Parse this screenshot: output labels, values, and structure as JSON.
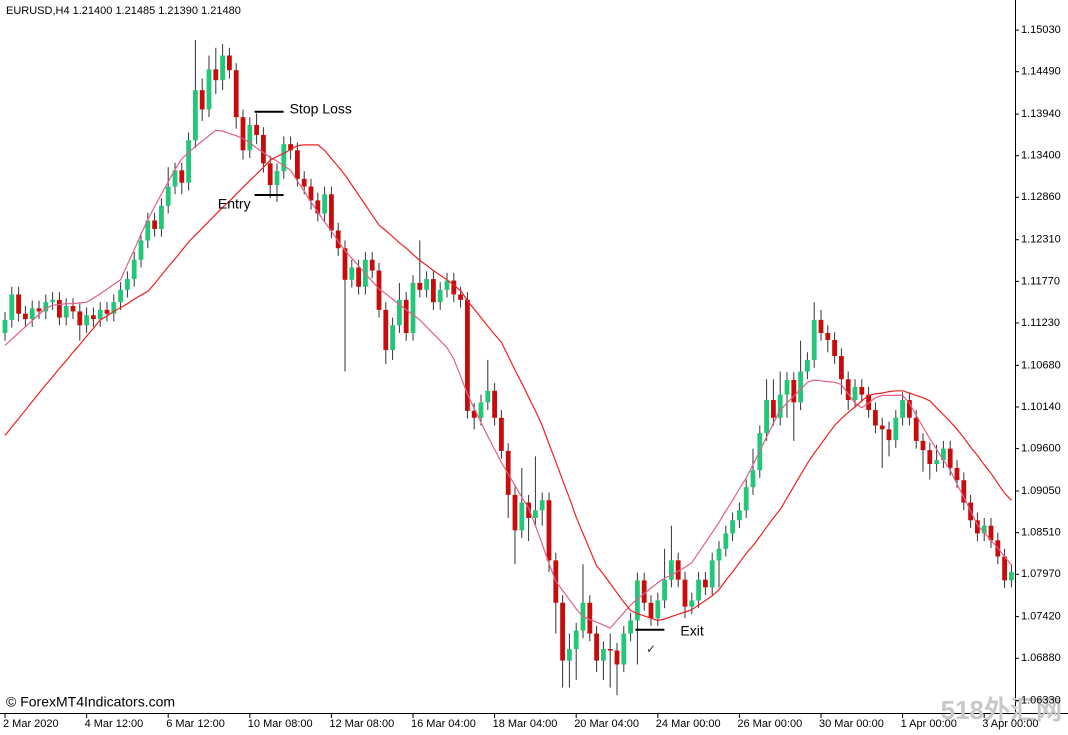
{
  "chart_data": {
    "type": "candlestick",
    "header": "EURUSD,H4  1.21400 1.21485 1.21390 1.21480",
    "watermark": "© ForexMT4Indicators.com",
    "corner_watermark": "518外汇网",
    "up_color": "#22c77a",
    "down_color": "#c80c0c",
    "wick_color": "#333333",
    "categories": [
      "2 Mar 2020",
      null,
      null,
      null,
      null,
      null,
      null,
      null,
      null,
      null,
      null,
      null,
      "4 Mar 12:00",
      null,
      null,
      null,
      null,
      null,
      null,
      null,
      null,
      null,
      null,
      null,
      "6 Mar 12:00",
      null,
      null,
      null,
      null,
      null,
      null,
      null,
      null,
      null,
      null,
      null,
      "10 Mar 08:00",
      null,
      null,
      null,
      null,
      null,
      null,
      null,
      null,
      null,
      null,
      null,
      "12 Mar 08:00",
      null,
      null,
      null,
      null,
      null,
      null,
      null,
      null,
      null,
      null,
      null,
      "16 Mar 04:00",
      null,
      null,
      null,
      null,
      null,
      null,
      null,
      null,
      null,
      null,
      null,
      "18 Mar 04:00",
      null,
      null,
      null,
      null,
      null,
      null,
      null,
      null,
      null,
      null,
      null,
      "20 Mar 04:00",
      null,
      null,
      null,
      null,
      null,
      null,
      null,
      null,
      null,
      null,
      null,
      "24 Mar 00:00",
      null,
      null,
      null,
      null,
      null,
      null,
      null,
      null,
      null,
      null,
      null,
      "26 Mar 00:00",
      null,
      null,
      null,
      null,
      null,
      null,
      null,
      null,
      null,
      null,
      null,
      "30 Mar 00:00",
      null,
      null,
      null,
      null,
      null,
      null,
      null,
      null,
      null,
      null,
      null,
      "1 Apr 00:00",
      null,
      null,
      null,
      null,
      null,
      null,
      null,
      null,
      null,
      null,
      null,
      "3 Apr 00:00",
      null,
      null,
      null,
      null
    ],
    "open": [
      1.111,
      1.1127,
      1.116,
      1.1135,
      1.1128,
      1.1142,
      1.1138,
      1.115,
      1.1153,
      1.113,
      1.1145,
      1.1138,
      1.112,
      1.1133,
      1.1128,
      1.114,
      1.1135,
      1.115,
      1.1166,
      1.118,
      1.1205,
      1.123,
      1.1256,
      1.1245,
      1.1275,
      1.13,
      1.1321,
      1.1305,
      1.136,
      1.1425,
      1.14,
      1.1452,
      1.1438,
      1.147,
      1.1451,
      1.139,
      1.1347,
      1.138,
      1.1367,
      1.133,
      1.1302,
      1.132,
      1.1355,
      1.1347,
      1.131,
      1.13,
      1.1282,
      1.1265,
      1.129,
      1.1243,
      1.122,
      1.1179,
      1.1195,
      1.117,
      1.1205,
      1.1191,
      1.114,
      1.1088,
      1.112,
      1.1153,
      1.111,
      1.1175,
      1.1166,
      1.118,
      1.115,
      1.1166,
      1.1178,
      1.116,
      1.1153,
      1.1009,
      1.1,
      1.102,
      1.1035,
      1.1,
      1.0957,
      1.09,
      1.0854,
      1.089,
      1.087,
      1.088,
      1.0893,
      1.0815,
      1.076,
      1.0685,
      1.07,
      1.0724,
      1.076,
      1.072,
      1.0685,
      1.07,
      1.0698,
      1.068,
      1.072,
      1.0737,
      1.0789,
      1.076,
      1.074,
      1.0763,
      1.079,
      1.0815,
      1.079,
      1.0755,
      1.0763,
      1.079,
      1.078,
      1.0815,
      1.083,
      1.085,
      1.0867,
      1.088,
      1.091,
      1.0932,
      1.098,
      1.1023,
      1.1,
      1.103,
      1.1049,
      1.102,
      1.106,
      1.1075,
      1.1127,
      1.111,
      1.1101,
      1.108,
      1.105,
      1.1023,
      1.104,
      1.103,
      1.101,
      1.099,
      1.0985,
      1.0971,
      1.1,
      1.1023,
      1.1,
      1.097,
      1.0958,
      1.094,
      1.0945,
      1.096,
      1.0935,
      1.0919,
      1.089,
      1.0867,
      1.085,
      1.086,
      1.0841,
      1.082,
      1.0789
    ],
    "high": [
      1.1137,
      1.117,
      1.117,
      1.1145,
      1.1152,
      1.1152,
      1.116,
      1.1163,
      1.1163,
      1.1155,
      1.1155,
      1.1148,
      1.1143,
      1.1143,
      1.115,
      1.115,
      1.116,
      1.1176,
      1.119,
      1.1215,
      1.124,
      1.1266,
      1.1266,
      1.1285,
      1.1325,
      1.1331,
      1.1331,
      1.137,
      1.149,
      1.144,
      1.147,
      1.148,
      1.1485,
      1.148,
      1.146,
      1.14,
      1.139,
      1.1395,
      1.1377,
      1.134,
      1.133,
      1.1365,
      1.1365,
      1.1357,
      1.132,
      1.131,
      1.1292,
      1.13,
      1.13,
      1.1253,
      1.123,
      1.1205,
      1.1205,
      1.1215,
      1.1215,
      1.1201,
      1.115,
      1.113,
      1.1175,
      1.1163,
      1.1185,
      1.123,
      1.119,
      1.119,
      1.1176,
      1.1188,
      1.1188,
      1.117,
      1.1163,
      1.1019,
      1.103,
      1.1075,
      1.1045,
      1.101,
      1.0967,
      1.091,
      1.0935,
      1.09,
      1.095,
      1.0903,
      1.0903,
      1.0825,
      1.077,
      1.072,
      1.0734,
      1.081,
      1.077,
      1.073,
      1.071,
      1.072,
      1.0708,
      1.073,
      1.0747,
      1.0799,
      1.0799,
      1.077,
      1.0773,
      1.083,
      1.086,
      1.0825,
      1.08,
      1.0773,
      1.08,
      1.08,
      1.0825,
      1.084,
      1.086,
      1.0877,
      1.089,
      1.092,
      1.096,
      1.099,
      1.105,
      1.105,
      1.106,
      1.1059,
      1.1059,
      1.11,
      1.1085,
      1.115,
      1.114,
      1.112,
      1.1111,
      1.109,
      1.106,
      1.105,
      1.105,
      1.104,
      1.102,
      1.1,
      1.0995,
      1.101,
      1.1033,
      1.1033,
      1.101,
      1.098,
      1.0968,
      1.0965,
      1.097,
      1.097,
      1.0945,
      1.0929,
      1.09,
      1.0877,
      1.087,
      1.087,
      1.0851,
      1.083,
      1.081
    ],
    "low": [
      1.11,
      1.1117,
      1.1125,
      1.1118,
      1.1118,
      1.1128,
      1.1128,
      1.114,
      1.112,
      1.112,
      1.1128,
      1.11,
      1.111,
      1.1118,
      1.1118,
      1.1125,
      1.1125,
      1.114,
      1.1156,
      1.117,
      1.1195,
      1.122,
      1.1235,
      1.1235,
      1.1265,
      1.129,
      1.129,
      1.1295,
      1.135,
      1.1385,
      1.139,
      1.142,
      1.1425,
      1.144,
      1.1375,
      1.1335,
      1.1337,
      1.1355,
      1.1318,
      1.1285,
      1.128,
      1.131,
      1.1335,
      1.13,
      1.129,
      1.127,
      1.1255,
      1.1255,
      1.1233,
      1.121,
      1.106,
      1.1169,
      1.116,
      1.116,
      1.1181,
      1.113,
      1.107,
      1.1075,
      1.111,
      1.11,
      1.11,
      1.1156,
      1.1156,
      1.114,
      1.114,
      1.1156,
      1.115,
      1.1143,
      1.0999,
      1.0985,
      1.099,
      1.101,
      1.099,
      1.0947,
      1.087,
      1.081,
      1.0844,
      1.084,
      1.086,
      1.086,
      1.08,
      1.072,
      1.065,
      1.065,
      1.066,
      1.0714,
      1.071,
      1.067,
      1.066,
      1.065,
      1.064,
      1.067,
      1.071,
      1.068,
      1.075,
      1.073,
      1.073,
      1.0753,
      1.078,
      1.078,
      1.074,
      1.0745,
      1.0753,
      1.077,
      1.077,
      1.078,
      1.082,
      1.084,
      1.0857,
      1.087,
      1.09,
      1.0922,
      1.097,
      1.099,
      1.099,
      1.1,
      1.097,
      1.101,
      1.105,
      1.1065,
      1.11,
      1.1085,
      1.107,
      1.103,
      1.101,
      1.1013,
      1.102,
      1.1,
      1.098,
      1.0935,
      1.095,
      1.0961,
      1.099,
      1.099,
      1.096,
      1.093,
      1.092,
      1.093,
      1.0935,
      1.0925,
      1.0909,
      1.088,
      1.0857,
      1.084,
      1.084,
      1.0831,
      1.081,
      1.0779,
      1.078
    ],
    "close": [
      1.1127,
      1.116,
      1.1135,
      1.1128,
      1.1142,
      1.1138,
      1.115,
      1.1153,
      1.113,
      1.1145,
      1.1138,
      1.112,
      1.1133,
      1.1128,
      1.114,
      1.1135,
      1.115,
      1.1166,
      1.118,
      1.1205,
      1.123,
      1.1256,
      1.1245,
      1.1275,
      1.13,
      1.1321,
      1.1305,
      1.136,
      1.1425,
      1.14,
      1.1452,
      1.1438,
      1.147,
      1.1451,
      1.139,
      1.1347,
      1.138,
      1.1367,
      1.133,
      1.1302,
      1.132,
      1.1355,
      1.1347,
      1.131,
      1.13,
      1.1282,
      1.1265,
      1.129,
      1.1243,
      1.122,
      1.1179,
      1.1195,
      1.117,
      1.1205,
      1.1191,
      1.114,
      1.1088,
      1.112,
      1.1153,
      1.111,
      1.1175,
      1.1166,
      1.118,
      1.115,
      1.1166,
      1.1178,
      1.116,
      1.1153,
      1.1009,
      1.1,
      1.102,
      1.1035,
      1.1,
      1.0957,
      1.09,
      1.0854,
      1.089,
      1.087,
      1.088,
      1.0893,
      1.0815,
      1.076,
      1.0685,
      1.07,
      1.0724,
      1.076,
      1.072,
      1.0685,
      1.07,
      1.0698,
      1.068,
      1.072,
      1.0737,
      1.0789,
      1.076,
      1.074,
      1.0763,
      1.079,
      1.0815,
      1.079,
      1.0755,
      1.0763,
      1.079,
      1.078,
      1.0815,
      1.083,
      1.085,
      1.0867,
      1.088,
      1.091,
      1.0932,
      1.098,
      1.1023,
      1.1,
      1.103,
      1.1049,
      1.102,
      1.106,
      1.1075,
      1.1127,
      1.111,
      1.1101,
      1.108,
      1.105,
      1.1023,
      1.104,
      1.103,
      1.101,
      1.099,
      1.0985,
      1.0971,
      1.1,
      1.1023,
      1.1,
      1.097,
      1.0958,
      1.094,
      1.0945,
      1.096,
      1.0935,
      1.0919,
      1.089,
      1.0867,
      1.085,
      1.086,
      1.0841,
      1.082,
      1.0789,
      1.08
    ],
    "series": [
      {
        "color": "#e0608a",
        "values": [
          1.1094,
          1.1102,
          1.111,
          1.1118,
          1.1126,
          1.1134,
          1.1142,
          1.1146,
          1.1147,
          1.1148,
          1.1148,
          1.1149,
          1.115,
          1.1155,
          1.1161,
          1.1167,
          1.1173,
          1.1179,
          1.1199,
          1.1218,
          1.1238,
          1.1257,
          1.1274,
          1.129,
          1.1306,
          1.1322,
          1.1336,
          1.1344,
          1.1352,
          1.1359,
          1.1366,
          1.1373,
          1.1372,
          1.1369,
          1.1366,
          1.1362,
          1.1357,
          1.135,
          1.1344,
          1.1338,
          1.1333,
          1.1327,
          1.1321,
          1.1307,
          1.1294,
          1.128,
          1.1267,
          1.1254,
          1.1242,
          1.1229,
          1.1217,
          1.1207,
          1.1197,
          1.1187,
          1.1177,
          1.1167,
          1.1161,
          1.1154,
          1.1147,
          1.114,
          1.1134,
          1.1127,
          1.1118,
          1.1109,
          1.11,
          1.1091,
          1.1076,
          1.1054,
          1.1031,
          1.1012,
          1.0994,
          1.0976,
          1.0959,
          1.0942,
          1.0927,
          1.0912,
          1.0897,
          1.0883,
          1.086,
          1.0836,
          1.0811,
          1.0788,
          1.0776,
          1.0764,
          1.0752,
          1.0742,
          1.0738,
          1.0735,
          1.0731,
          1.0727,
          1.0737,
          1.0747,
          1.0757,
          1.0765,
          1.0772,
          1.0779,
          1.0786,
          1.0792,
          1.0796,
          1.0801,
          1.0806,
          1.0812,
          1.0825,
          1.0838,
          1.0851,
          1.0864,
          1.0879,
          1.0893,
          1.0908,
          1.0922,
          1.0939,
          1.0957,
          1.0975,
          1.0993,
          1.101,
          1.1019,
          1.1028,
          1.1037,
          1.1046,
          1.1049,
          1.1048,
          1.1047,
          1.1046,
          1.1043,
          1.1031,
          1.1019,
          1.1013,
          1.1019,
          1.1026,
          1.1029,
          1.1029,
          1.1029,
          1.1029,
          1.1019,
          1.1003,
          1.0988,
          1.0973,
          1.0959,
          1.0945,
          1.0932,
          1.0914,
          1.0897,
          1.0879,
          1.0861,
          1.0851,
          1.0841,
          1.0831,
          1.082,
          1.0809
        ]
      },
      {
        "color": "#f02020",
        "values": [
          1.0977,
          1.0988,
          1.0999,
          1.101,
          1.1021,
          1.1032,
          1.1043,
          1.1053,
          1.1064,
          1.1074,
          1.1085,
          1.1095,
          1.1106,
          1.1116,
          1.1127,
          1.1132,
          1.1138,
          1.1143,
          1.1148,
          1.1154,
          1.1159,
          1.1164,
          1.1174,
          1.1185,
          1.1196,
          1.1206,
          1.1217,
          1.1228,
          1.1237,
          1.1246,
          1.1255,
          1.1264,
          1.1273,
          1.1281,
          1.129,
          1.1299,
          1.1308,
          1.1316,
          1.1325,
          1.1334,
          1.1339,
          1.1343,
          1.1348,
          1.1353,
          1.1354,
          1.1354,
          1.1354,
          1.1347,
          1.1336,
          1.1326,
          1.1315,
          1.1302,
          1.1289,
          1.1276,
          1.1263,
          1.125,
          1.1243,
          1.1235,
          1.1227,
          1.122,
          1.1212,
          1.1204,
          1.1198,
          1.1191,
          1.1185,
          1.1179,
          1.1172,
          1.1165,
          1.1152,
          1.1141,
          1.113,
          1.1119,
          1.1108,
          1.1098,
          1.108,
          1.1062,
          1.1045,
          1.1027,
          1.1009,
          1.099,
          1.0966,
          1.0943,
          1.0919,
          1.0896,
          1.0871,
          1.085,
          1.0829,
          1.0808,
          1.0797,
          1.0785,
          1.0773,
          1.0761,
          1.075,
          1.0746,
          1.0743,
          1.074,
          1.0737,
          1.0739,
          1.0742,
          1.0745,
          1.0748,
          1.0751,
          1.0757,
          1.0763,
          1.0769,
          1.0777,
          1.0789,
          1.08,
          1.0812,
          1.0824,
          1.0834,
          1.0846,
          1.0858,
          1.087,
          1.0881,
          1.0896,
          1.0911,
          1.0926,
          1.0941,
          1.0954,
          1.0966,
          1.0978,
          1.099,
          1.0999,
          1.1007,
          1.1014,
          1.1022,
          1.1029,
          1.1031,
          1.1032,
          1.1034,
          1.1035,
          1.1035,
          1.1032,
          1.1029,
          1.1026,
          1.1022,
          1.1013,
          1.1004,
          1.0995,
          1.0985,
          1.0974,
          1.0962,
          1.0951,
          1.0939,
          1.0928,
          1.0915,
          1.0902,
          1.0893
        ]
      }
    ],
    "ylim": [
      1.0617,
      1.1542
    ],
    "yticks": [
      {
        "value": 1.1503,
        "label": "1.15030"
      },
      {
        "value": 1.1449,
        "label": "1.14490"
      },
      {
        "value": 1.1394,
        "label": "1.13940"
      },
      {
        "value": 1.134,
        "label": "1.13400"
      },
      {
        "value": 1.1286,
        "label": "1.12860"
      },
      {
        "value": 1.1231,
        "label": "1.12310"
      },
      {
        "value": 1.1177,
        "label": "1.11770"
      },
      {
        "value": 1.1123,
        "label": "1.11230"
      },
      {
        "value": 1.1068,
        "label": "1.10680"
      },
      {
        "value": 1.1014,
        "label": "1.10140"
      },
      {
        "value": 1.096,
        "label": "1.09600"
      },
      {
        "value": 1.0905,
        "label": "1.09050"
      },
      {
        "value": 1.0851,
        "label": "1.08510"
      },
      {
        "value": 1.0797,
        "label": "1.07970"
      },
      {
        "value": 1.0742,
        "label": "1.07420"
      },
      {
        "value": 1.0688,
        "label": "1.06880"
      },
      {
        "value": 1.0633,
        "label": "1.06330"
      }
    ],
    "annotations": [
      {
        "text": "Stop Loss",
        "price": 1.1397,
        "index": 37
      },
      {
        "text": "Entry",
        "price": 1.1289,
        "index": 37
      },
      {
        "text": "Exit",
        "price": 1.0725,
        "index": 93
      }
    ],
    "marks": [
      {
        "text": "✓",
        "price": 1.0699,
        "index": 95
      }
    ]
  }
}
